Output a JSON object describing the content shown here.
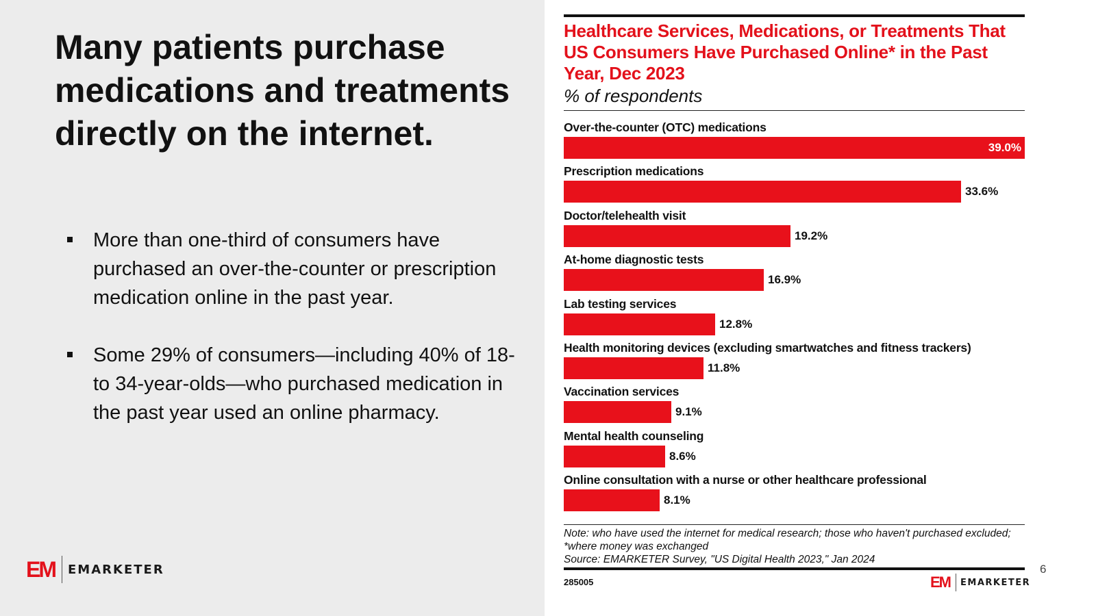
{
  "slide": {
    "headline": "Many patients purchase medications and treatments directly on the internet.",
    "bullets": [
      "More than one-third of consumers have purchased an over-the-counter or prescription medication online in the past year.",
      "Some 29% of consumers—including 40% of 18- to 34-year-olds—who purchased medication in the past year used an online pharmacy."
    ],
    "page_number": "6",
    "logo": {
      "mark": "EM",
      "word": "EMARKETER",
      "mark_color": "#e3111b"
    }
  },
  "chart_data": {
    "type": "bar",
    "orientation": "horizontal",
    "title": "Healthcare Services, Medications, or Treatments That US Consumers Have Purchased Online* in the Past Year, Dec 2023",
    "subtitle": "% of respondents",
    "xlabel": "",
    "ylabel": "",
    "xlim": [
      0,
      39.0
    ],
    "grid": false,
    "legend": "none",
    "bar_color": "#e8111b",
    "title_color": "#e3111b",
    "categories": [
      "Over-the-counter (OTC) medications",
      "Prescription medications",
      "Doctor/telehealth visit",
      "At-home diagnostic tests",
      "Lab testing services",
      "Health monitoring devices (excluding smartwatches and fitness trackers)",
      "Vaccination services",
      "Mental health counseling",
      "Online consultation with a nurse or other healthcare professional"
    ],
    "values": [
      39.0,
      33.6,
      19.2,
      16.9,
      12.8,
      11.8,
      9.1,
      8.6,
      8.1
    ],
    "value_labels": [
      "39.0%",
      "33.6%",
      "19.2%",
      "16.9%",
      "12.8%",
      "11.8%",
      "9.1%",
      "8.6%",
      "8.1%"
    ],
    "note": "Note: who have used the internet for medical research; those who haven't purchased excluded; *where money was exchanged",
    "source": "Source: EMARKETER Survey, \"US Digital Health 2023,\" Jan 2024",
    "chart_id": "285005"
  }
}
